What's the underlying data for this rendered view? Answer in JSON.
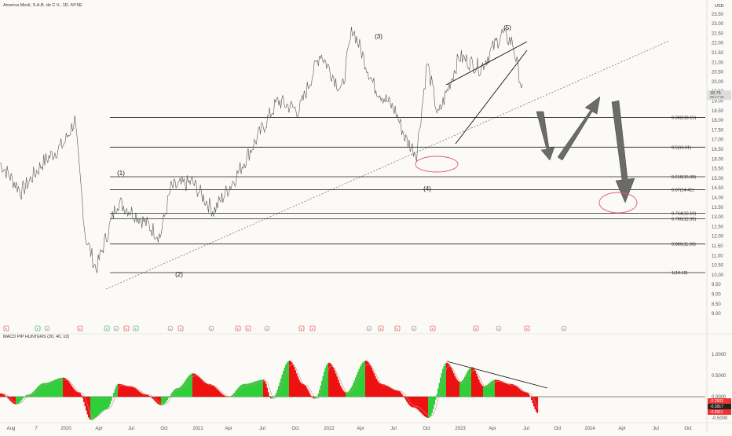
{
  "header": {
    "title": "America Movil, S.A.B. de C.V., 1D, NYSE",
    "currency": "USD"
  },
  "indicator": {
    "label": "MACD PIP HUNTERS (20, 40, 10)"
  },
  "price_axis_labels": [
    "23.50",
    "23.00",
    "22.50",
    "22.00",
    "21.50",
    "21.00",
    "20.50",
    "20.00",
    "19.50",
    "19.00",
    "18.50",
    "18.00",
    "17.50",
    "17.00",
    "16.50",
    "16.00",
    "15.50",
    "15.00",
    "14.50",
    "14.00",
    "13.50",
    "13.00",
    "12.50",
    "12.00",
    "11.50",
    "11.00",
    "10.50",
    "10.00",
    "9.50",
    "9.00",
    "8.50",
    "8.00"
  ],
  "price_current": "18.75",
  "price_current_sub": "06:17:43",
  "macd_axis_labels": [
    "1.0000",
    "0.5000",
    "0.0000"
  ],
  "macd_current": [
    "-0.2603",
    "-0.3917",
    "-0.5911"
  ],
  "macd_low_label": "-0.5000",
  "time_axis_labels": [
    "Aug",
    "7",
    "2020",
    "Apr",
    "Jul",
    "Oct",
    "2021",
    "Apr",
    "Jul",
    "Oct",
    "2022",
    "Apr",
    "Jul",
    "Oct",
    "2023",
    "Apr",
    "Jul",
    "Oct",
    "2024",
    "Apr",
    "Jul",
    "Oct"
  ],
  "fib_labels": [
    "0.382(18.15)",
    "0.5(16.61)",
    "0.618(15.08)",
    "0.67(14.41)",
    "0.764(13.19)",
    "0.786(12.90)",
    "0.886(11.60)",
    "1(10.12)"
  ],
  "wave_labels": [
    "(1)",
    "(2)",
    "(3)",
    "(4)",
    "(5)"
  ],
  "event_markers": [
    "E",
    "E",
    "D",
    "E",
    "E",
    "D",
    "E",
    "E",
    "D",
    "E",
    "D",
    "E",
    "E",
    "D",
    "E",
    "E",
    "D",
    "E",
    "E",
    "D",
    "E",
    "E",
    "D",
    "E",
    "D"
  ],
  "colors": {
    "price_line": "#555555",
    "macd_up": "#2fcf3a",
    "macd_down": "#ee1111",
    "signal_line": "#d08a8a",
    "arrow": "#6b6b6b",
    "ellipse": "#e05a7a",
    "earnings_green": "#2a9d4a",
    "earnings_red": "#d33"
  },
  "chart_data": [
    {
      "type": "line",
      "title": "America Movil, S.A.B. de C.V., 1D, NYSE",
      "ylabel": "USD",
      "ylim": [
        7.9,
        24.0
      ],
      "x_range": [
        "2019-07",
        "2024-10"
      ],
      "x": [
        "2019-07",
        "2019-09",
        "2019-11",
        "2020-01",
        "2020-02",
        "2020-03",
        "2020-04",
        "2020-06",
        "2020-08",
        "2020-10",
        "2020-11",
        "2021-01",
        "2021-03",
        "2021-05",
        "2021-07",
        "2021-09",
        "2021-11",
        "2022-01",
        "2022-03",
        "2022-04",
        "2022-06",
        "2022-08",
        "2022-09",
        "2022-10",
        "2022-11",
        "2022-12",
        "2023-02",
        "2023-04",
        "2023-06",
        "2023-07",
        "2023-08"
      ],
      "y": [
        15.8,
        14.3,
        15.8,
        16.8,
        18.0,
        12.0,
        10.3,
        13.8,
        13.0,
        12.0,
        14.5,
        14.8,
        13.3,
        15.0,
        17.0,
        19.0,
        18.5,
        21.5,
        19.5,
        22.8,
        19.8,
        18.5,
        17.0,
        16.3,
        21.0,
        18.2,
        21.3,
        20.7,
        22.5,
        22.0,
        19.3
      ],
      "fib_levels": [
        {
          "ratio": 0.382,
          "value": 18.15
        },
        {
          "ratio": 0.5,
          "value": 16.61
        },
        {
          "ratio": 0.618,
          "value": 15.08
        },
        {
          "ratio": 0.67,
          "value": 14.41
        },
        {
          "ratio": 0.764,
          "value": 13.19
        },
        {
          "ratio": 0.786,
          "value": 12.9
        },
        {
          "ratio": 0.886,
          "value": 11.6
        },
        {
          "ratio": 1,
          "value": 10.12
        }
      ],
      "annotations": [
        "(1)",
        "(2)",
        "(3)",
        "(4)",
        "(5)"
      ]
    },
    {
      "type": "bar",
      "title": "MACD PIP HUNTERS (20, 40, 10)",
      "ylim": [
        -0.6,
        1.05
      ],
      "x_range": [
        "2019-07",
        "2024-10"
      ]
    }
  ]
}
